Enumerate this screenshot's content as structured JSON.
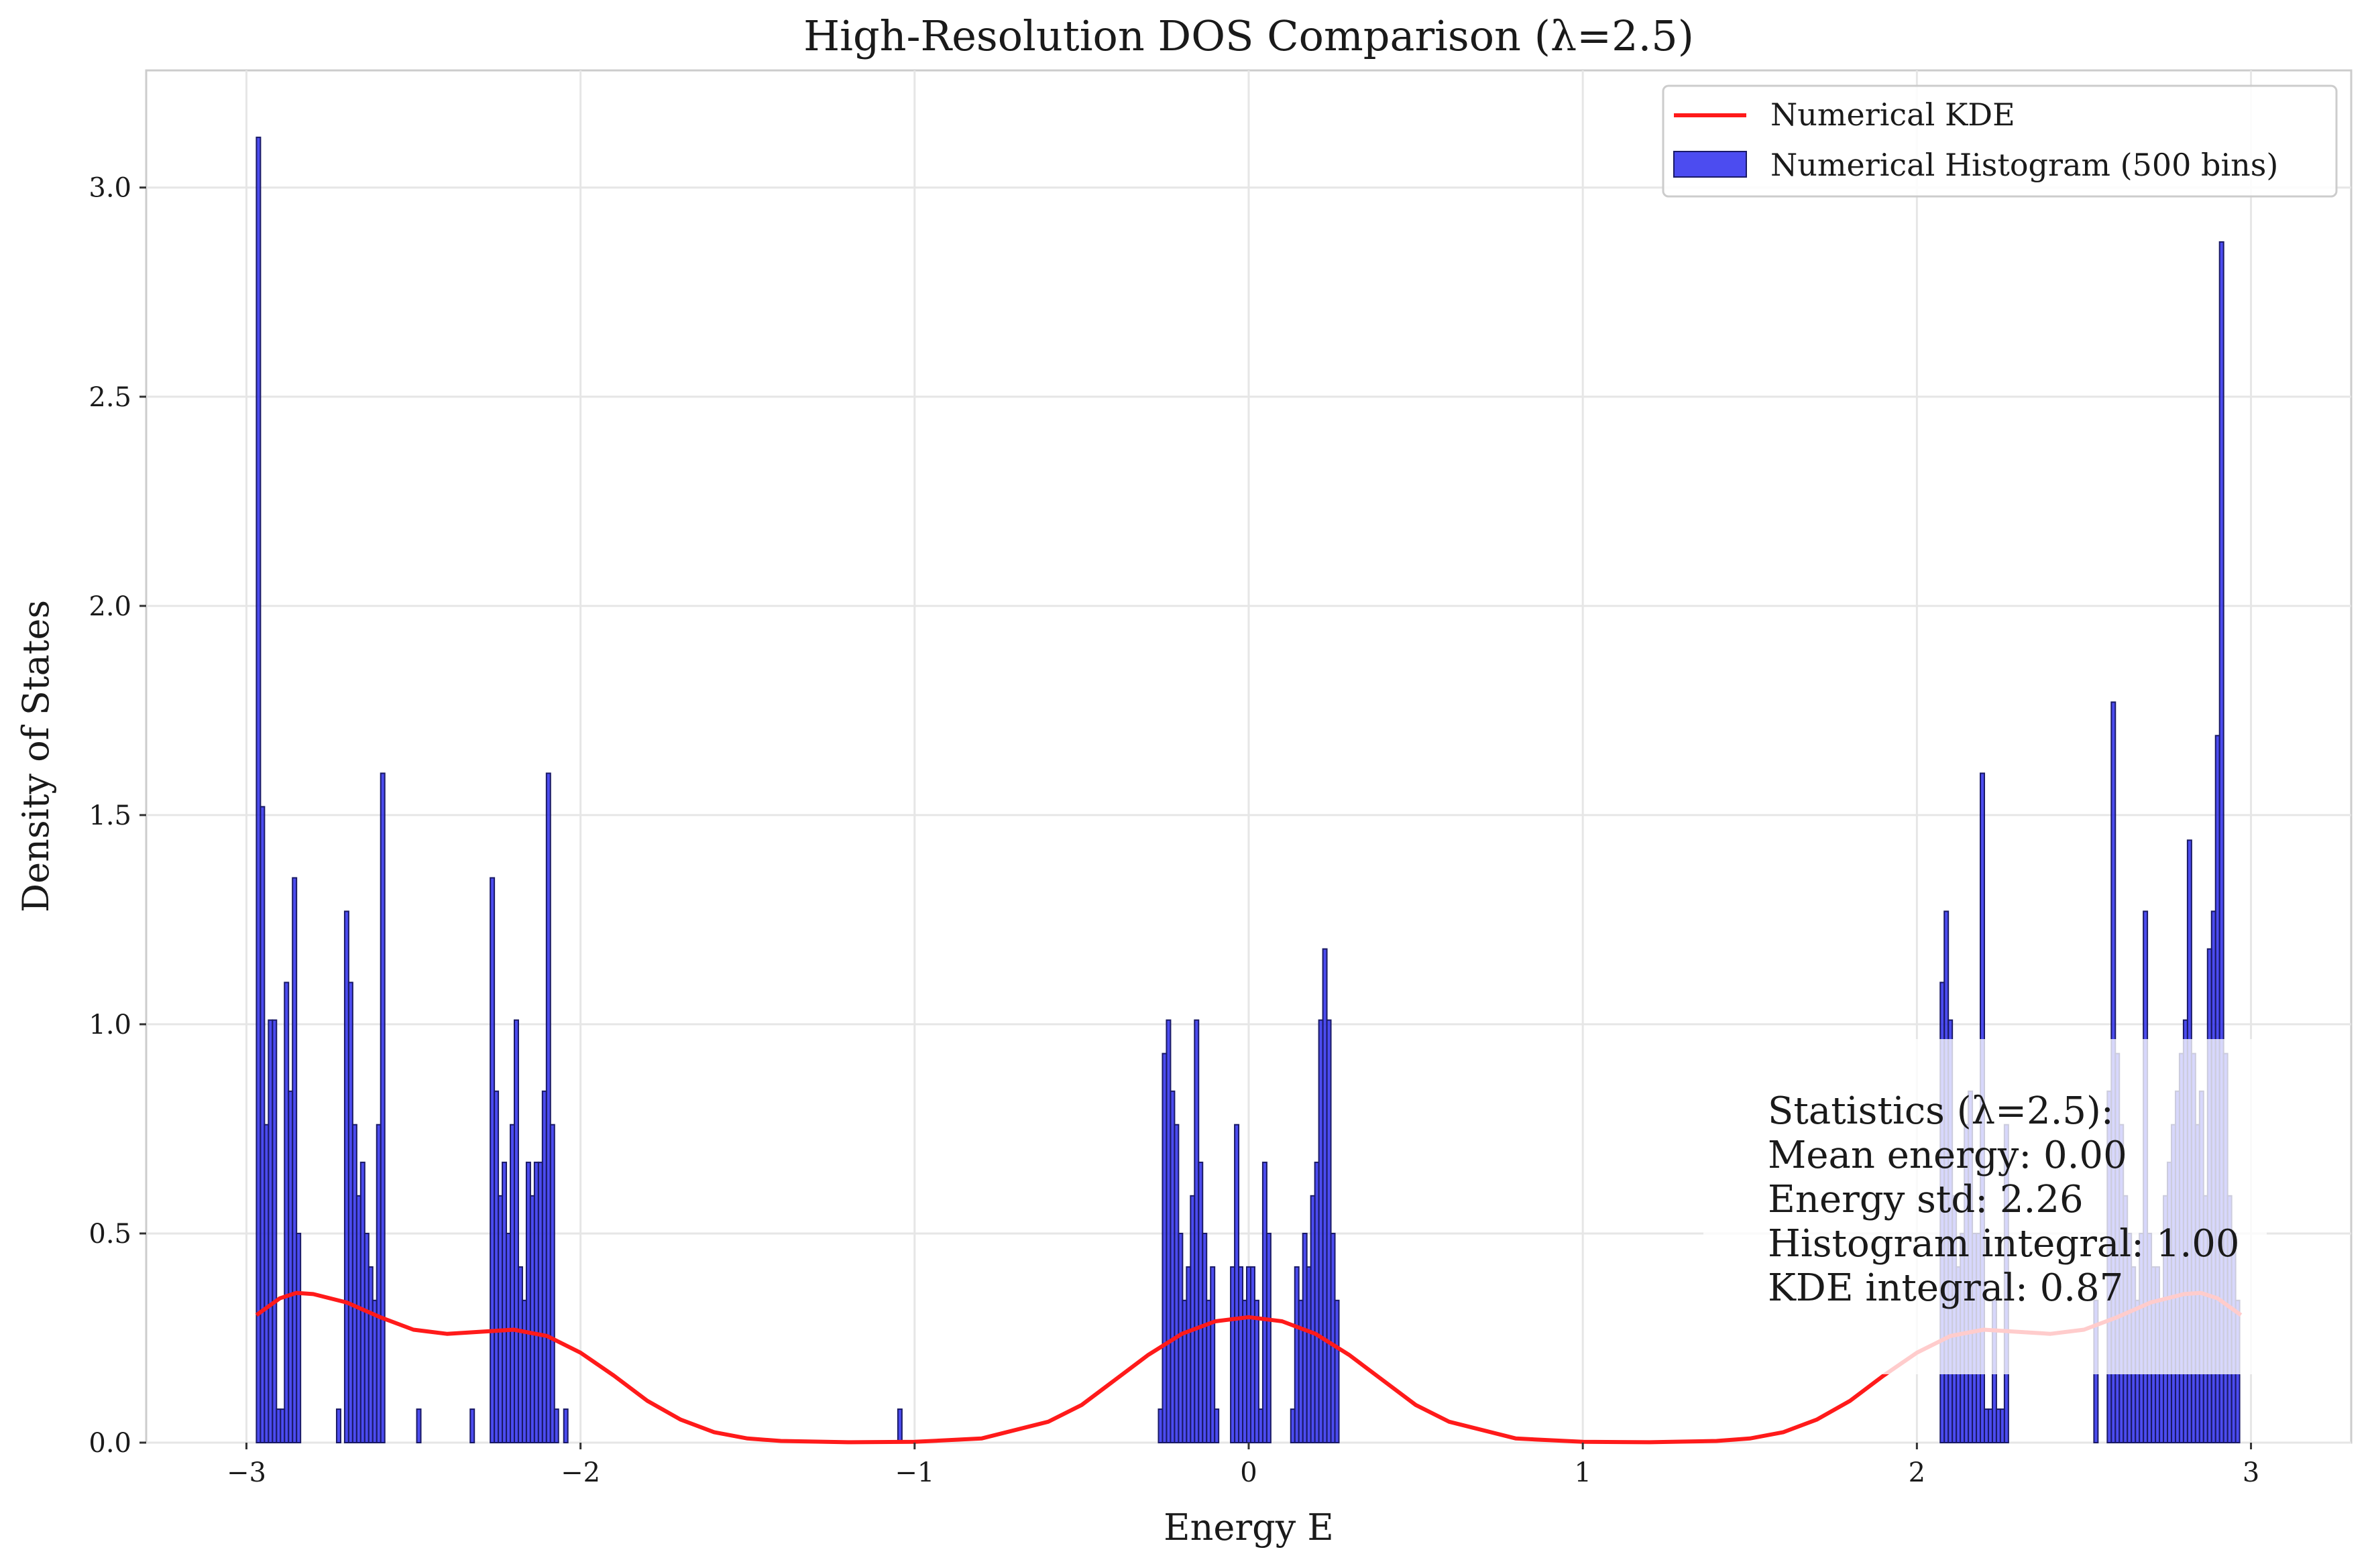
{
  "chart_data": {
    "type": "bar",
    "title": "High-Resolution DOS Comparison (λ=2.5)",
    "xlabel": "Energy E",
    "ylabel": "Density of States",
    "xlim": [
      -3.3,
      3.3
    ],
    "ylim": [
      0.0,
      3.28
    ],
    "xticks": [
      -3,
      -2,
      -1,
      0,
      1,
      2,
      3
    ],
    "xtick_labels": [
      "−3",
      "−2",
      "−1",
      "0",
      "1",
      "2",
      "3"
    ],
    "yticks": [
      0.0,
      0.5,
      1.0,
      1.5,
      2.0,
      2.5,
      3.0
    ],
    "ytick_labels": [
      "0.0",
      "0.5",
      "1.0",
      "1.5",
      "2.0",
      "2.5",
      "3.0"
    ],
    "grid": true,
    "legend_position": "top-right",
    "bin_width": 0.012,
    "series": [
      {
        "name": "Numerical KDE",
        "kind": "line",
        "color": "#ff1a1a",
        "x": [
          -2.97,
          -2.9,
          -2.85,
          -2.8,
          -2.7,
          -2.6,
          -2.5,
          -2.4,
          -2.3,
          -2.2,
          -2.1,
          -2.0,
          -1.9,
          -1.8,
          -1.7,
          -1.6,
          -1.5,
          -1.4,
          -1.2,
          -1.0,
          -0.8,
          -0.6,
          -0.5,
          -0.4,
          -0.3,
          -0.2,
          -0.1,
          0.0,
          0.1,
          0.2,
          0.3,
          0.4,
          0.5,
          0.6,
          0.8,
          1.0,
          1.2,
          1.4,
          1.5,
          1.6,
          1.7,
          1.8,
          1.9,
          2.0,
          2.1,
          2.2,
          2.3,
          2.4,
          2.5,
          2.6,
          2.7,
          2.8,
          2.85,
          2.9,
          2.97
        ],
        "y": [
          0.305,
          0.345,
          0.358,
          0.355,
          0.335,
          0.3,
          0.27,
          0.26,
          0.265,
          0.27,
          0.255,
          0.215,
          0.16,
          0.1,
          0.055,
          0.025,
          0.01,
          0.004,
          0.001,
          0.002,
          0.01,
          0.05,
          0.09,
          0.15,
          0.21,
          0.26,
          0.29,
          0.3,
          0.29,
          0.26,
          0.21,
          0.15,
          0.09,
          0.05,
          0.01,
          0.002,
          0.001,
          0.004,
          0.01,
          0.025,
          0.055,
          0.1,
          0.16,
          0.215,
          0.255,
          0.27,
          0.265,
          0.26,
          0.27,
          0.3,
          0.335,
          0.355,
          0.358,
          0.345,
          0.305
        ]
      },
      {
        "name": "Numerical Histogram (500 bins)",
        "kind": "histogram",
        "color": "#3333ee",
        "edge_color": "#1a1a66",
        "x": [
          -2.97,
          -2.958,
          -2.946,
          -2.934,
          -2.922,
          -2.91,
          -2.898,
          -2.886,
          -2.874,
          -2.862,
          -2.85,
          -2.73,
          -2.706,
          -2.694,
          -2.682,
          -2.67,
          -2.658,
          -2.646,
          -2.634,
          -2.622,
          -2.61,
          -2.598,
          -2.49,
          -2.33,
          -2.27,
          -2.258,
          -2.246,
          -2.234,
          -2.222,
          -2.21,
          -2.198,
          -2.186,
          -2.174,
          -2.162,
          -2.15,
          -2.138,
          -2.126,
          -2.114,
          -2.102,
          -2.09,
          -2.078,
          -2.05,
          -1.05,
          -0.27,
          -0.258,
          -0.246,
          -0.234,
          -0.222,
          -0.21,
          -0.198,
          -0.186,
          -0.174,
          -0.162,
          -0.15,
          -0.138,
          -0.126,
          -0.114,
          -0.102,
          -0.054,
          -0.042,
          -0.03,
          -0.018,
          -0.006,
          0.006,
          0.018,
          0.03,
          0.042,
          0.054,
          0.126,
          0.138,
          0.15,
          0.162,
          0.174,
          0.186,
          0.198,
          0.21,
          0.222,
          0.234,
          0.246,
          0.258,
          2.07,
          2.082,
          2.094,
          2.106,
          2.118,
          2.13,
          2.142,
          2.154,
          2.166,
          2.178,
          2.19,
          2.202,
          2.214,
          2.226,
          2.238,
          2.25,
          2.262,
          2.53,
          2.57,
          2.582,
          2.594,
          2.606,
          2.618,
          2.63,
          2.642,
          2.654,
          2.666,
          2.678,
          2.69,
          2.702,
          2.714,
          2.726,
          2.738,
          2.75,
          2.762,
          2.774,
          2.786,
          2.798,
          2.81,
          2.822,
          2.834,
          2.846,
          2.858,
          2.87,
          2.882,
          2.894,
          2.906,
          2.918,
          2.93,
          2.942,
          2.954
        ],
        "y": [
          3.12,
          1.52,
          0.76,
          1.01,
          1.01,
          0.08,
          0.08,
          1.1,
          0.84,
          1.35,
          0.5,
          0.08,
          1.27,
          1.1,
          0.76,
          0.59,
          0.67,
          0.5,
          0.42,
          0.34,
          0.76,
          1.6,
          0.08,
          0.08,
          1.35,
          0.84,
          0.59,
          0.67,
          0.5,
          0.76,
          1.01,
          0.42,
          0.34,
          0.67,
          0.59,
          0.67,
          0.67,
          0.84,
          1.6,
          0.76,
          0.08,
          0.08,
          0.08,
          0.08,
          0.93,
          1.01,
          0.84,
          0.76,
          0.5,
          0.34,
          0.42,
          0.59,
          1.01,
          0.67,
          0.5,
          0.34,
          0.42,
          0.08,
          0.42,
          0.76,
          0.42,
          0.34,
          0.42,
          0.42,
          0.34,
          0.08,
          0.67,
          0.5,
          0.08,
          0.42,
          0.34,
          0.5,
          0.42,
          0.59,
          0.67,
          1.01,
          1.18,
          1.01,
          0.5,
          0.34,
          1.1,
          1.27,
          1.01,
          0.59,
          0.42,
          0.5,
          0.76,
          0.84,
          0.5,
          0.5,
          1.6,
          0.08,
          0.08,
          0.34,
          0.08,
          0.08,
          0.76,
          0.34,
          0.84,
          1.77,
          0.93,
          0.76,
          0.59,
          0.5,
          0.42,
          0.34,
          0.5,
          1.27,
          0.5,
          0.42,
          0.42,
          0.34,
          0.59,
          0.67,
          0.76,
          0.84,
          0.93,
          1.01,
          1.44,
          0.93,
          0.76,
          0.84,
          0.59,
          1.18,
          1.27,
          1.69,
          2.87,
          0.93,
          0.59,
          0.5,
          0.34
        ]
      }
    ],
    "annotation": {
      "lines": [
        "Statistics (λ=2.5):",
        "Mean energy: 0.00",
        "Energy std: 2.26",
        "Histogram integral: 1.00",
        "KDE integral: 0.87"
      ]
    }
  }
}
